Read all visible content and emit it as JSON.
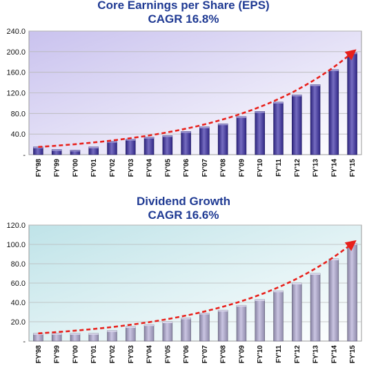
{
  "chart_data": [
    {
      "type": "bar",
      "title": "Core Earnings per Share (EPS)",
      "subtitle": "CAGR 16.8%",
      "categories": [
        "FY'98",
        "FY'99",
        "FY'00",
        "FY'01",
        "FY'02",
        "FY'03",
        "FY'04",
        "FY'05",
        "FY'06",
        "FY'07",
        "FY'08",
        "FY'09",
        "FY'10",
        "FY'11",
        "FY'12",
        "FY'13",
        "FY'14",
        "FY'15"
      ],
      "values": [
        15,
        10,
        9,
        15,
        26,
        30,
        34,
        37,
        45,
        54,
        60,
        74,
        84,
        102,
        116,
        136,
        165,
        198
      ],
      "ylim": [
        0,
        240
      ],
      "yticks": [
        "-",
        "40.0",
        "80.0",
        "120.0",
        "160.0",
        "200.0",
        "240.0"
      ],
      "trendline": "dashed-red-arrow",
      "bar_color": "#3b2fa6",
      "background_gradient": [
        "#c9c2ee",
        "#ffffff"
      ]
    },
    {
      "type": "bar",
      "title": "Dividend Growth",
      "subtitle": "CAGR 16.6%",
      "categories": [
        "FY'98",
        "FY'99",
        "FY'00",
        "FY'01",
        "FY'02",
        "FY'03",
        "FY'04",
        "FY'05",
        "FY'06",
        "FY'07",
        "FY'08",
        "FY'09",
        "FY'10",
        "FY'11",
        "FY'12",
        "FY'13",
        "FY'14",
        "FY'15"
      ],
      "values": [
        8,
        8,
        8,
        8,
        11,
        15,
        17,
        20,
        24,
        29,
        32,
        37,
        43,
        52,
        60,
        70,
        85,
        101
      ],
      "ylim": [
        0,
        120
      ],
      "yticks": [
        "-",
        "20.0",
        "40.0",
        "60.0",
        "80.0",
        "100.0",
        "120.0"
      ],
      "trendline": "dashed-red-arrow",
      "bar_color": "#b3acd6",
      "background_gradient": [
        "#bfe3e8",
        "#ffffff"
      ]
    }
  ]
}
